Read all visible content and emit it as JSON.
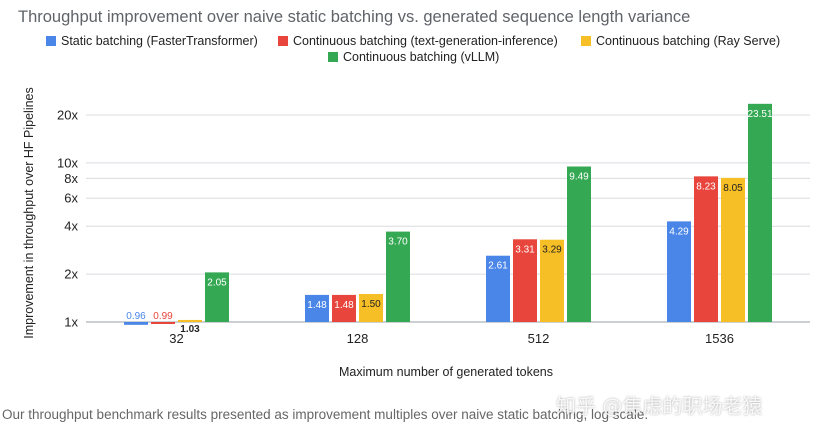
{
  "chart_data": {
    "type": "bar",
    "title": "Throughput improvement over naive static batching vs. generated sequence length variance",
    "xlabel": "Maximum number of generated tokens",
    "ylabel": "Improvement in throughput over HF Pipelines",
    "y_scale": "log",
    "ylim": [
      0.85,
      30
    ],
    "yticks": [
      {
        "value": 1,
        "label": "1x"
      },
      {
        "value": 2,
        "label": "2x"
      },
      {
        "value": 4,
        "label": "4x"
      },
      {
        "value": 6,
        "label": "6x"
      },
      {
        "value": 8,
        "label": "8x"
      },
      {
        "value": 10,
        "label": "10x"
      },
      {
        "value": 20,
        "label": "20x"
      }
    ],
    "grid": true,
    "legend_position": "top",
    "categories": [
      "32",
      "128",
      "512",
      "1536"
    ],
    "series": [
      {
        "name": "Static batching (FasterTransformer)",
        "color": "#4a86e8",
        "values": [
          0.96,
          1.48,
          2.61,
          4.29
        ],
        "labels": [
          "0.96",
          "1.48",
          "2.61",
          "4.29"
        ]
      },
      {
        "name": "Continuous batching (text-generation-inference)",
        "color": "#e8453c",
        "values": [
          0.99,
          1.48,
          3.31,
          8.23
        ],
        "labels": [
          "0.99",
          "1.48",
          "3.31",
          "8.23"
        ]
      },
      {
        "name": "Continuous batching (Ray Serve)",
        "color": "#f6bf26",
        "values": [
          1.03,
          1.5,
          3.29,
          8.05
        ],
        "labels": [
          "1.03",
          "1.50",
          "3.29",
          "8.05"
        ]
      },
      {
        "name": "Continuous batching (vLLM)",
        "color": "#34a853",
        "values": [
          2.05,
          3.7,
          9.49,
          23.51
        ],
        "labels": [
          "2.05",
          "3.70",
          "9.49",
          "23.51"
        ]
      }
    ]
  },
  "caption": "Our throughput benchmark results presented as improvement multiples over naive static batching, log scale.",
  "watermark": "知乎 @焦虑的职场老猿"
}
